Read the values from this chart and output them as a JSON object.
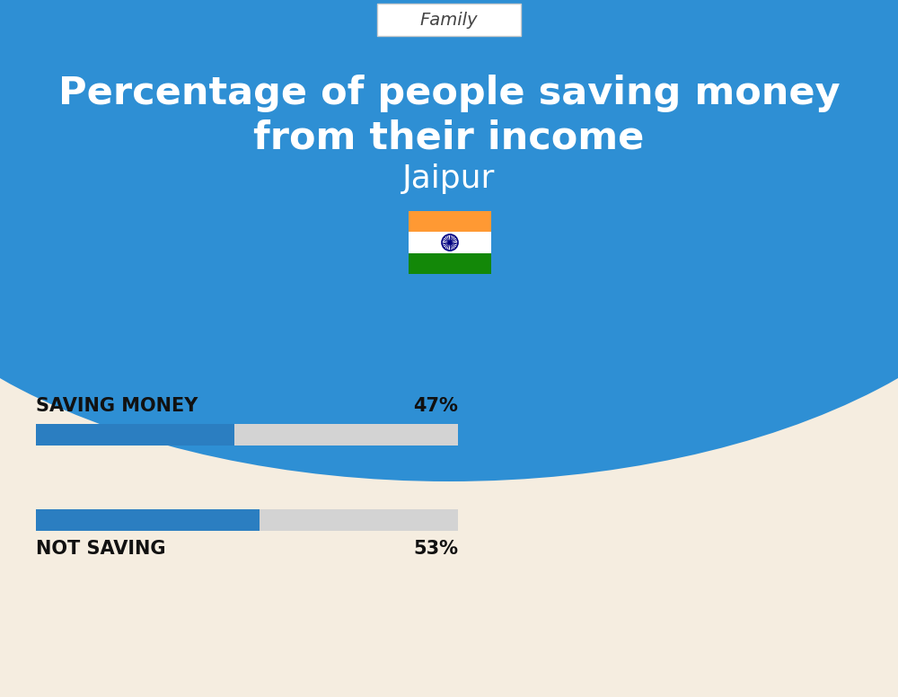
{
  "title_line1": "Percentage of people saving money",
  "title_line2": "from their income",
  "subtitle": "Jaipur",
  "category_label": "Family",
  "bg_top_color": "#2E8FD4",
  "bg_bottom_color": "#F5EDE0",
  "bar1_label": "SAVING MONEY",
  "bar1_value": 47,
  "bar1_pct": "47%",
  "bar2_label": "NOT SAVING",
  "bar2_value": 53,
  "bar2_pct": "53%",
  "bar_fill_color": "#2B7EC1",
  "bar_bg_color": "#D3D3D3",
  "title_color": "#FFFFFF",
  "subtitle_color": "#FFFFFF",
  "label_color": "#111111",
  "category_text_color": "#444444",
  "flag_saffron": "#FF9933",
  "flag_white": "#FFFFFF",
  "flag_green": "#138808",
  "flag_chakra": "#000080"
}
